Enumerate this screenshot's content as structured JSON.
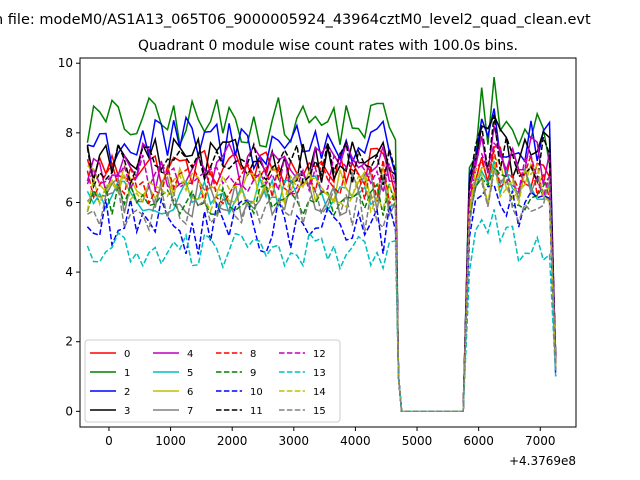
{
  "header": {
    "suptitle": "n file: modeM0/AS1A13_065T06_9000005924_43964cztM0_level2_quad_clean.evt"
  },
  "chart_data": {
    "type": "line",
    "title": "Quadrant 0 module wise count rates with 100.0s bins.",
    "xlabel": "",
    "ylabel": "",
    "x_offset_label": "+4.3769e8",
    "xlim": [
      -470,
      7580
    ],
    "ylim": [
      -0.45,
      10.15
    ],
    "xticks": [
      0,
      1000,
      2000,
      3000,
      4000,
      5000,
      6000,
      7000
    ],
    "xtick_labels": [
      "0",
      "1000",
      "2000",
      "3000",
      "4000",
      "5000",
      "6000",
      "7000"
    ],
    "yticks": [
      0,
      2,
      4,
      6,
      8,
      10
    ],
    "ytick_labels": [
      "0",
      "2",
      "4",
      "6",
      "8",
      "10"
    ],
    "grid": false,
    "legend_placement": "lower-left",
    "legend_columns": 4,
    "segments": {
      "first_x": [
        -350,
        4650
      ],
      "step": 100,
      "gap_x": [
        4750,
        5750
      ],
      "second_x": [
        5850,
        7250
      ]
    },
    "series": [
      {
        "name": "0",
        "color": "#ff0000",
        "dash": "solid",
        "base1": 7.0,
        "amp1": 0.35,
        "last1": 6.2,
        "base2": 7.0,
        "amp2": 0.4,
        "peak2": 7.6,
        "end": 1.5
      },
      {
        "name": "1",
        "color": "#008000",
        "dash": "solid",
        "base1": 8.3,
        "amp1": 0.45,
        "last1": 7.8,
        "base2": 7.8,
        "amp2": 0.6,
        "peak2": 9.6,
        "end": 1.6
      },
      {
        "name": "2",
        "color": "#0000ff",
        "dash": "solid",
        "base1": 7.7,
        "amp1": 0.5,
        "last1": 6.8,
        "base2": 7.6,
        "amp2": 0.5,
        "peak2": 8.7,
        "end": 1.3
      },
      {
        "name": "3",
        "color": "#000000",
        "dash": "solid",
        "base1": 7.2,
        "amp1": 0.4,
        "last1": 6.8,
        "base2": 7.4,
        "amp2": 0.5,
        "peak2": 8.5,
        "end": 1.4
      },
      {
        "name": "4",
        "color": "#bf00bf",
        "dash": "solid",
        "base1": 7.0,
        "amp1": 0.45,
        "last1": 6.6,
        "base2": 7.2,
        "amp2": 0.5,
        "peak2": 8.2,
        "end": 1.5
      },
      {
        "name": "5",
        "color": "#00bfbf",
        "dash": "solid",
        "base1": 6.2,
        "amp1": 0.35,
        "last1": 6.0,
        "base2": 6.5,
        "amp2": 0.4,
        "peak2": 7.2,
        "end": 1.2
      },
      {
        "name": "6",
        "color": "#bfbf00",
        "dash": "solid",
        "base1": 6.5,
        "amp1": 0.35,
        "last1": 6.3,
        "base2": 6.6,
        "amp2": 0.4,
        "peak2": 7.3,
        "end": 1.3
      },
      {
        "name": "7",
        "color": "#808080",
        "dash": "solid",
        "base1": 6.2,
        "amp1": 0.4,
        "last1": 6.0,
        "base2": 6.4,
        "amp2": 0.4,
        "peak2": 7.0,
        "end": 1.2
      },
      {
        "name": "8",
        "color": "#ff0000",
        "dash": "dashed",
        "base1": 6.6,
        "amp1": 0.4,
        "last1": 6.2,
        "base2": 6.8,
        "amp2": 0.5,
        "peak2": 7.5,
        "end": 1.4
      },
      {
        "name": "9",
        "color": "#008000",
        "dash": "dashed",
        "base1": 6.1,
        "amp1": 0.3,
        "last1": 5.9,
        "base2": 6.3,
        "amp2": 0.4,
        "peak2": 7.0,
        "end": 1.3
      },
      {
        "name": "10",
        "color": "#0000ff",
        "dash": "dashed",
        "base1": 5.3,
        "amp1": 0.5,
        "last1": 5.2,
        "base2": 5.8,
        "amp2": 0.5,
        "peak2": 6.5,
        "end": 1.0
      },
      {
        "name": "11",
        "color": "#000000",
        "dash": "dashed",
        "base1": 7.1,
        "amp1": 0.4,
        "last1": 6.9,
        "base2": 7.3,
        "amp2": 0.5,
        "peak2": 8.5,
        "end": 1.5
      },
      {
        "name": "12",
        "color": "#bf00bf",
        "dash": "dashed",
        "base1": 6.8,
        "amp1": 0.35,
        "last1": 6.5,
        "base2": 6.9,
        "amp2": 0.5,
        "peak2": 7.7,
        "end": 1.4
      },
      {
        "name": "13",
        "color": "#00bfbf",
        "dash": "dashed",
        "base1": 4.6,
        "amp1": 0.35,
        "last1": 4.9,
        "base2": 4.8,
        "amp2": 0.4,
        "peak2": 5.8,
        "end": 1.0
      },
      {
        "name": "14",
        "color": "#bfbf00",
        "dash": "dashed",
        "base1": 6.3,
        "amp1": 0.35,
        "last1": 6.1,
        "base2": 6.5,
        "amp2": 0.4,
        "peak2": 7.1,
        "end": 1.3
      },
      {
        "name": "15",
        "color": "#808080",
        "dash": "dashed",
        "base1": 5.8,
        "amp1": 0.4,
        "last1": 5.9,
        "base2": 6.1,
        "amp2": 0.45,
        "peak2": 6.9,
        "end": 1.2
      }
    ]
  }
}
